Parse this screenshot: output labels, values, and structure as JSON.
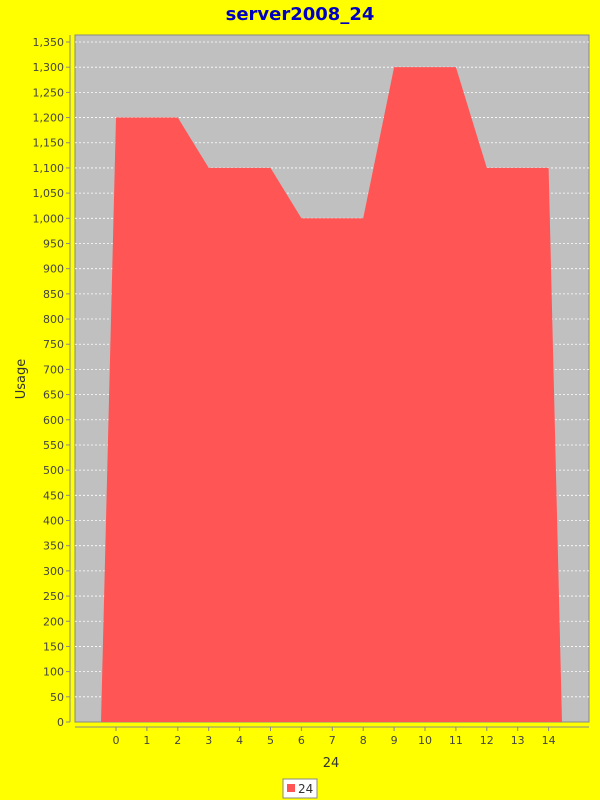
{
  "chart_data": {
    "type": "area",
    "title": "server2008_24",
    "xlabel": "24",
    "ylabel": "Usage",
    "categories": [
      "0",
      "1",
      "2",
      "3",
      "4",
      "5",
      "6",
      "7",
      "8",
      "9",
      "10",
      "11",
      "12",
      "13",
      "14"
    ],
    "series": [
      {
        "name": "24",
        "values": [
          1200,
          1200,
          1200,
          1100,
          1100,
          1100,
          1000,
          1000,
          1000,
          1300,
          1300,
          1300,
          1100,
          1100,
          1100
        ]
      }
    ],
    "ylim": [
      0,
      1350
    ],
    "yticks": [
      0,
      50,
      100,
      150,
      200,
      250,
      300,
      350,
      400,
      450,
      500,
      550,
      600,
      650,
      700,
      750,
      800,
      850,
      900,
      950,
      1000,
      1050,
      1100,
      1150,
      1200,
      1250,
      1300,
      1350
    ],
    "ytick_labels": [
      "0",
      "50",
      "100",
      "150",
      "200",
      "250",
      "300",
      "350",
      "400",
      "450",
      "500",
      "550",
      "600",
      "650",
      "700",
      "750",
      "800",
      "850",
      "900",
      "950",
      "1,000",
      "1,050",
      "1,100",
      "1,150",
      "1,200",
      "1,250",
      "1,300",
      "1,350"
    ],
    "grid": true,
    "legend_position": "bottom",
    "colors": {
      "page_background": "#ffff00",
      "plot_background": "#c0c0c0",
      "series_fill": "#ff5555",
      "title": "#0000c0",
      "grid": "#ffffff"
    }
  }
}
